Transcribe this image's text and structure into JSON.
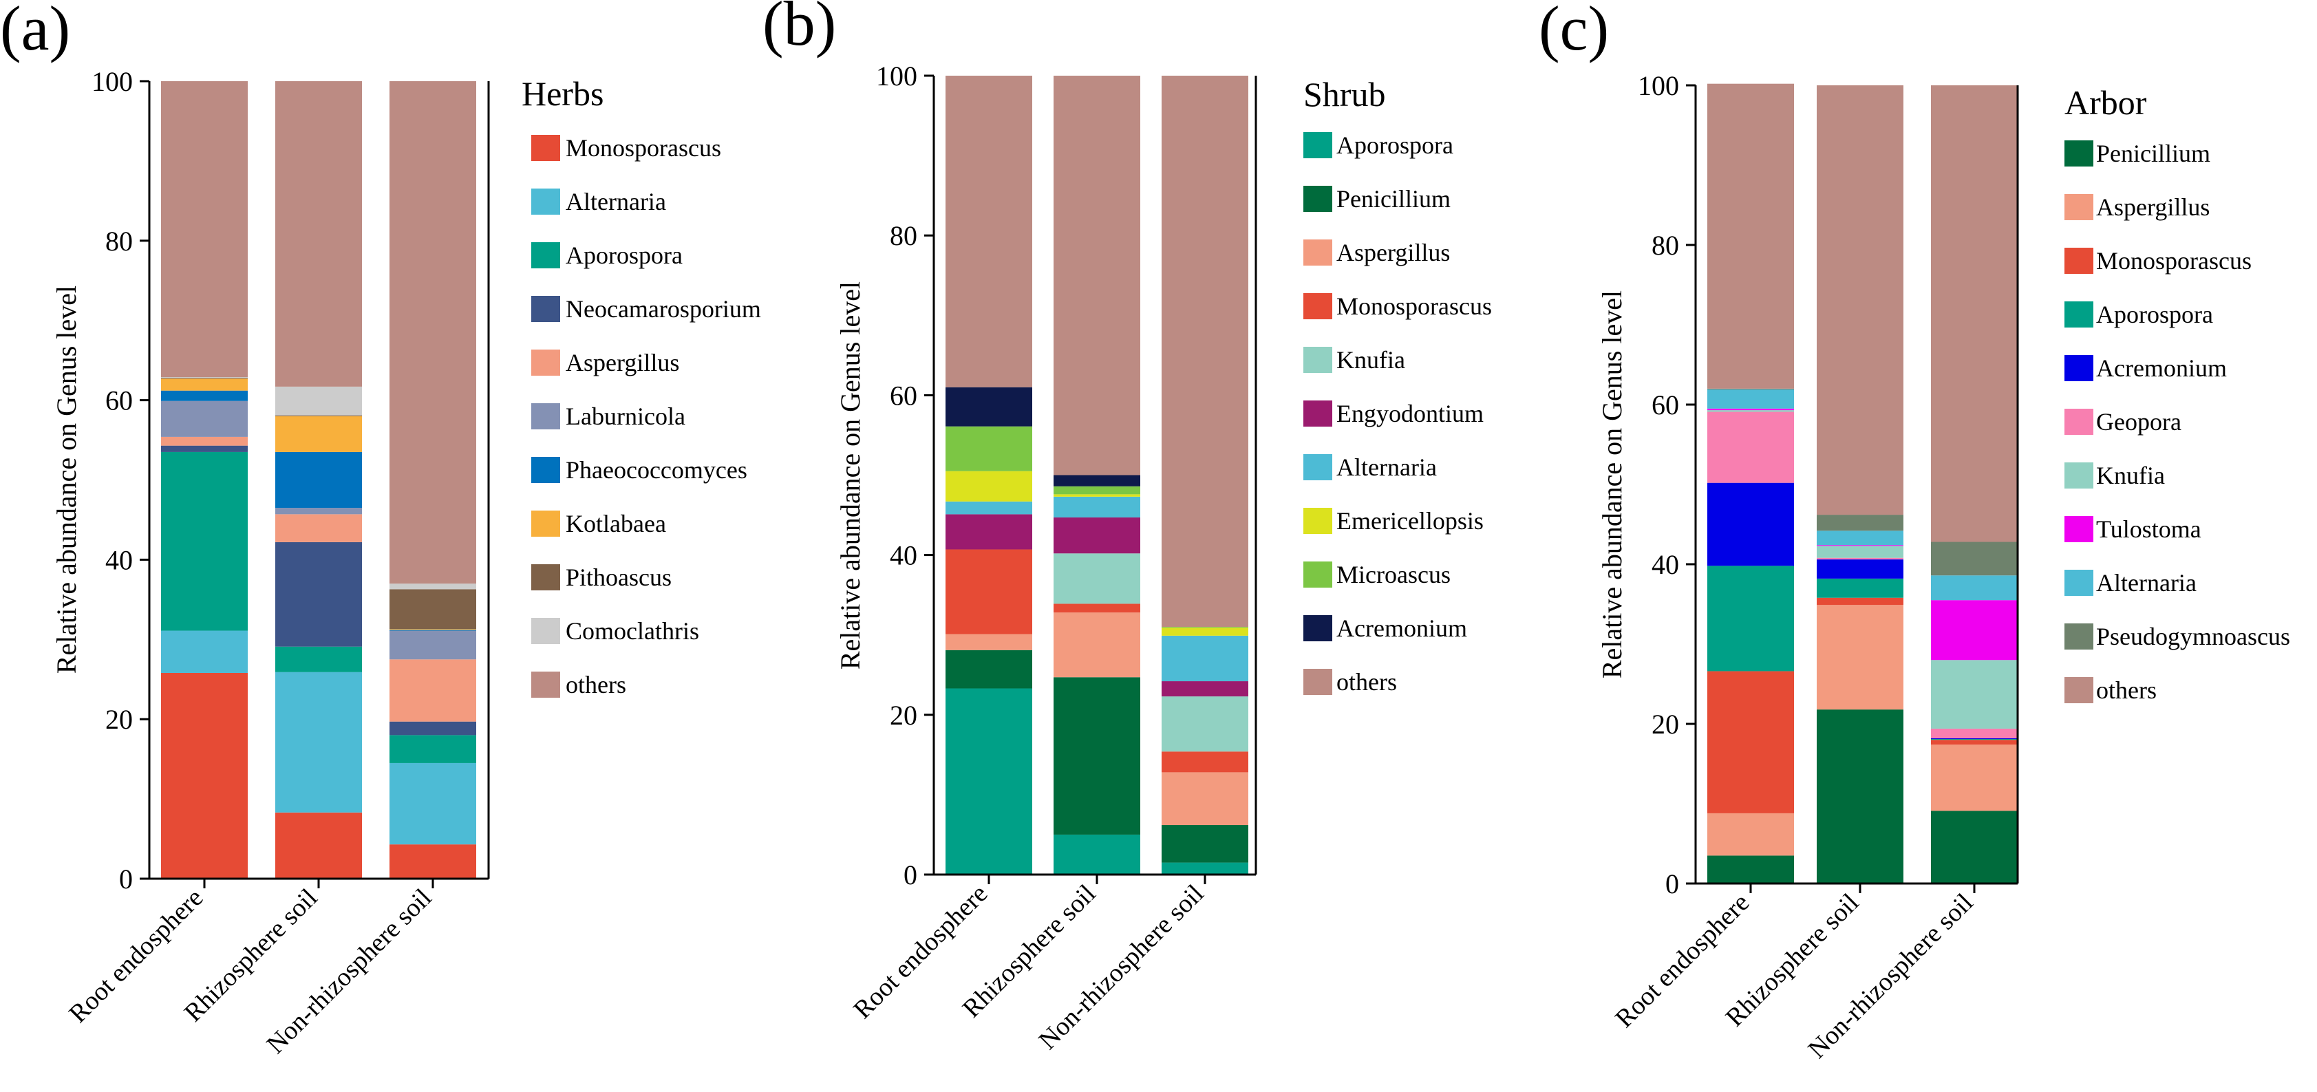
{
  "chart_data": [
    {
      "type": "bar",
      "stacked": true,
      "panel_label": "(a)",
      "legend_title": "Herbs",
      "ylabel": "Relative abundance on Genus level",
      "ylim": [
        0,
        100
      ],
      "yticks": [
        "0",
        "20",
        "40",
        "60",
        "80",
        "100"
      ],
      "categories": [
        "Root endosphere",
        "Rhizosphere soil",
        "Non-rhizosphere soil"
      ],
      "series": [
        {
          "name": "Monosporascus",
          "color": "#E64B35",
          "values": [
            25.8,
            8.3,
            4.3
          ]
        },
        {
          "name": "Alternaria",
          "color": "#4DBBD5",
          "values": [
            5.3,
            17.6,
            10.2
          ]
        },
        {
          "name": "Aporospora",
          "color": "#00A087",
          "values": [
            22.4,
            3.2,
            3.5
          ]
        },
        {
          "name": "Neocamarosporium",
          "color": "#3C5488",
          "values": [
            0.8,
            13.1,
            1.7
          ]
        },
        {
          "name": "Aspergillus",
          "color": "#F39B7F",
          "values": [
            1.1,
            3.5,
            7.8
          ]
        },
        {
          "name": "Laburnicola",
          "color": "#8491B4",
          "values": [
            4.5,
            0.8,
            3.6
          ]
        },
        {
          "name": "Phaeococcomyces",
          "color": "#0072BD",
          "values": [
            1.3,
            7.0,
            0.1
          ]
        },
        {
          "name": "Kotlabaea",
          "color": "#F8B03C",
          "values": [
            1.5,
            4.5,
            0.1
          ]
        },
        {
          "name": "Pithoascus",
          "color": "#7E6148",
          "values": [
            0.1,
            0.1,
            5.0
          ]
        },
        {
          "name": "Comoclathris",
          "color": "#CCCCCC",
          "values": [
            0.1,
            3.6,
            0.7
          ]
        },
        {
          "name": "others",
          "color": "#BC8B83",
          "values": [
            37.1,
            38.3,
            63.0
          ]
        }
      ]
    },
    {
      "type": "bar",
      "stacked": true,
      "panel_label": "(b)",
      "legend_title": "Shrub",
      "ylabel": "Relative abundance on Genus level",
      "ylim": [
        0,
        100
      ],
      "yticks": [
        "0",
        "20",
        "40",
        "60",
        "80",
        "100"
      ],
      "categories": [
        "Root endosphere",
        "Rhizosphere soil",
        "Non-rhizosphere soil"
      ],
      "series": [
        {
          "name": "Aporospora",
          "color": "#00A087",
          "values": [
            23.3,
            5.0,
            1.5
          ]
        },
        {
          "name": "Penicillium",
          "color": "#006B3C",
          "values": [
            4.8,
            19.7,
            4.7
          ]
        },
        {
          "name": "Aspergillus",
          "color": "#F39B7F",
          "values": [
            2.0,
            8.1,
            6.6
          ]
        },
        {
          "name": "Monosporascus",
          "color": "#E64B35",
          "values": [
            10.6,
            1.1,
            2.6
          ]
        },
        {
          "name": "Knufia",
          "color": "#91D1C2",
          "values": [
            0.0,
            6.3,
            6.9
          ]
        },
        {
          "name": "Engyodontium",
          "color": "#9B1B6E",
          "values": [
            4.4,
            4.5,
            1.9
          ]
        },
        {
          "name": "Alternaria",
          "color": "#4DBBD5",
          "values": [
            1.6,
            2.6,
            5.7
          ]
        },
        {
          "name": "Emericellopsis",
          "color": "#DCE21E",
          "values": [
            3.8,
            0.3,
            1.0
          ]
        },
        {
          "name": "Microascus",
          "color": "#7CC644",
          "values": [
            5.6,
            1.0,
            0.1
          ]
        },
        {
          "name": "Acremonium",
          "color": "#0E1A4B",
          "values": [
            4.9,
            1.4,
            0.0
          ]
        },
        {
          "name": "others",
          "color": "#BC8B83",
          "values": [
            39.0,
            50.0,
            69.0
          ]
        }
      ]
    },
    {
      "type": "bar",
      "stacked": true,
      "panel_label": "(c)",
      "legend_title": "Arbor",
      "ylabel": "Relative abundance on Genus level",
      "ylim": [
        0,
        100
      ],
      "yticks": [
        "0",
        "20",
        "40",
        "60",
        "80",
        "100"
      ],
      "categories": [
        "Root endosphere",
        "Rhizosphere soil",
        "Non-rhizosphere soil"
      ],
      "series": [
        {
          "name": "Penicillium",
          "color": "#006B3C",
          "values": [
            3.5,
            21.8,
            9.1
          ]
        },
        {
          "name": "Aspergillus",
          "color": "#F39B7F",
          "values": [
            5.3,
            13.1,
            8.3
          ]
        },
        {
          "name": "Monosporascus",
          "color": "#E64B35",
          "values": [
            17.8,
            0.9,
            0.6
          ]
        },
        {
          "name": "Aporospora",
          "color": "#00A087",
          "values": [
            13.2,
            2.4,
            0.1
          ]
        },
        {
          "name": "Acremonium",
          "color": "#0000E6",
          "values": [
            10.4,
            2.4,
            0.1
          ]
        },
        {
          "name": "Geopora",
          "color": "#F87FB0",
          "values": [
            8.9,
            0.2,
            1.2
          ]
        },
        {
          "name": "Knufia",
          "color": "#91D1C2",
          "values": [
            0.2,
            1.5,
            8.6
          ]
        },
        {
          "name": "Tulostoma",
          "color": "#F000F0",
          "values": [
            0.2,
            0.1,
            7.5
          ]
        },
        {
          "name": "Alternaria",
          "color": "#4DBBD5",
          "values": [
            2.4,
            1.8,
            3.1
          ]
        },
        {
          "name": "Pseudogymnoascus",
          "color": "#6E826C",
          "values": [
            0.1,
            2.0,
            4.2
          ]
        },
        {
          "name": "others",
          "color": "#BC8B83",
          "values": [
            38.2,
            53.8,
            57.2
          ]
        }
      ]
    }
  ]
}
